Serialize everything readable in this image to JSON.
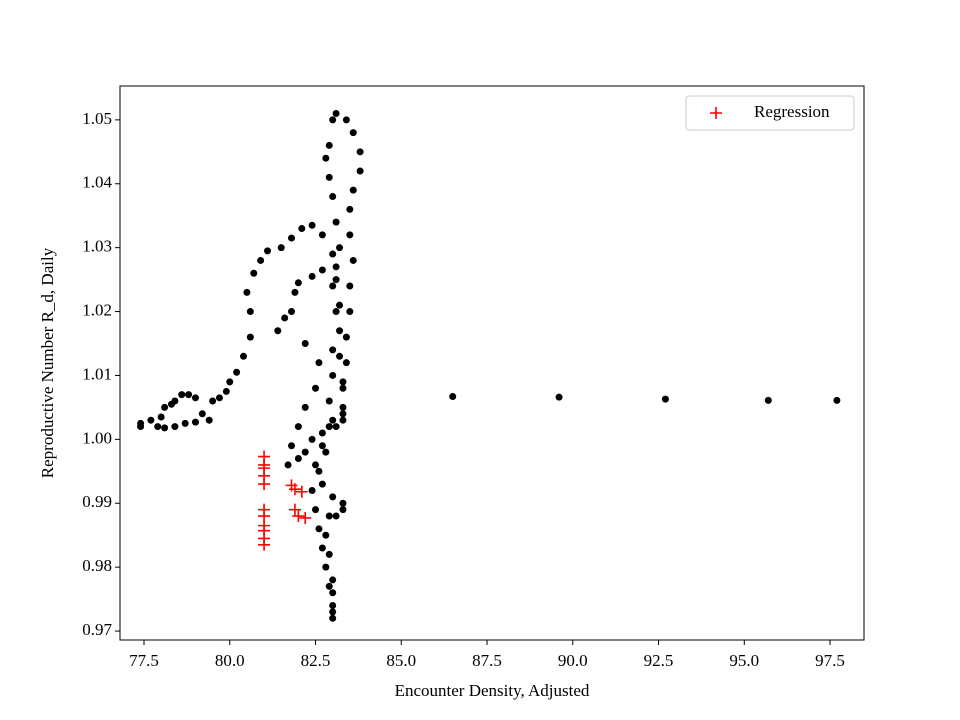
{
  "chart_data": {
    "type": "scatter",
    "x_label": "Encounter Density, Adjusted",
    "y_label": "Reproductive Number R_d, Daily",
    "xlim": [
      76.8,
      98.49
    ],
    "ylim": [
      0.9686,
      1.0553
    ],
    "xticks": [
      77.5,
      {
        "value": 80,
        "label": "80.0"
      },
      82.5,
      {
        "value": 85,
        "label": "85.0"
      },
      87.5,
      {
        "value": 90,
        "label": "90.0"
      },
      92.5,
      {
        "value": 95,
        "label": "95.0"
      },
      97.5
    ],
    "yticks": [
      0.97,
      0.98,
      0.99,
      {
        "value": 1,
        "label": "1.00"
      },
      1.01,
      1.02,
      1.03,
      1.04,
      1.05
    ],
    "legend": "upper right",
    "series": [
      {
        "color": "#000000",
        "marker": "dot",
        "x": [
          77.4,
          77.4,
          77.7,
          77.9,
          78.0,
          78.1,
          78.3,
          78.4,
          78.6,
          78.8,
          79.0,
          79.2,
          79.4,
          79.5,
          79.7,
          79.9,
          80.0,
          80.2,
          80.4,
          80.6,
          80.6,
          80.5,
          80.7,
          80.9,
          81.1,
          81.5,
          81.8,
          82.1,
          82.4,
          82.7,
          83.0,
          83.1,
          83.2,
          83.2,
          83.2,
          83.3,
          83.3,
          83.3,
          78.1,
          78.4,
          78.7,
          79.0,
          82.7,
          82.4,
          82.0,
          81.9,
          81.8,
          81.6,
          81.4,
          82.2,
          82.6,
          82.5,
          82.2,
          82.0,
          81.8,
          81.7,
          82.0,
          82.2,
          82.4,
          82.7,
          82.9,
          83.1,
          83.0,
          83.1,
          83.4,
          83.6,
          83.8,
          83.8,
          83.6,
          83.5,
          83.5,
          83.6,
          83.5,
          83.5,
          83.4,
          83.4,
          83.3,
          83.3,
          82.9,
          82.8,
          82.9,
          83.0,
          83.1,
          83.2,
          83.1,
          83.0,
          83.1,
          83.0,
          83.0,
          82.9,
          83.0,
          82.8,
          82.6,
          82.4,
          82.5,
          82.6,
          82.7,
          82.8,
          82.9,
          83.0,
          83.0,
          83.0,
          83.0,
          83.0,
          82.9,
          82.8,
          82.9,
          83.1,
          83.3,
          83.3,
          83.0,
          82.7,
          82.5,
          82.7,
          86.5,
          89.6,
          92.7,
          95.7,
          97.7
        ],
        "values": [
          1.002,
          1.0025,
          1.003,
          1.002,
          1.0035,
          1.005,
          1.0055,
          1.006,
          1.007,
          1.007,
          1.0065,
          1.004,
          1.003,
          1.006,
          1.0065,
          1.0075,
          1.009,
          1.0105,
          1.013,
          1.016,
          1.02,
          1.023,
          1.026,
          1.028,
          1.0295,
          1.03,
          1.0315,
          1.033,
          1.0335,
          1.032,
          1.029,
          1.025,
          1.021,
          1.017,
          1.013,
          1.009,
          1.005,
          1.003,
          1.0018,
          1.002,
          1.0025,
          1.0027,
          1.0265,
          1.0255,
          1.0245,
          1.023,
          1.02,
          1.019,
          1.017,
          1.015,
          1.012,
          1.008,
          1.005,
          1.002,
          0.999,
          0.996,
          0.997,
          0.998,
          1.0,
          1.001,
          1.002,
          1.002,
          1.05,
          1.051,
          1.05,
          1.048,
          1.045,
          1.042,
          1.039,
          1.036,
          1.032,
          1.028,
          1.024,
          1.02,
          1.016,
          1.012,
          1.008,
          1.004,
          1.046,
          1.044,
          1.041,
          1.038,
          1.034,
          1.03,
          1.027,
          1.024,
          1.02,
          1.014,
          1.01,
          1.006,
          1.003,
          0.998,
          0.995,
          0.992,
          0.989,
          0.986,
          0.983,
          0.98,
          0.977,
          0.974,
          0.972,
          0.973,
          0.976,
          0.978,
          0.982,
          0.985,
          0.988,
          0.988,
          0.989,
          0.99,
          0.991,
          0.993,
          0.996,
          0.999,
          1.0067,
          1.0066,
          1.0063,
          1.0061,
          1.0061
        ]
      },
      {
        "name": "Regression",
        "color": "#ff0000",
        "marker": "plus",
        "x": [
          81.0,
          81.0,
          81.0,
          81.0,
          81.0,
          81.0,
          81.0,
          81.0,
          81.0,
          81.0,
          81.0,
          81.8,
          81.9,
          82.1,
          81.9,
          82.0,
          82.2
        ],
        "values": [
          0.9973,
          0.996,
          0.9955,
          0.9943,
          0.993,
          0.989,
          0.988,
          0.9865,
          0.9857,
          0.9845,
          0.9835,
          0.9928,
          0.9922,
          0.9918,
          0.989,
          0.988,
          0.9877
        ]
      }
    ]
  }
}
